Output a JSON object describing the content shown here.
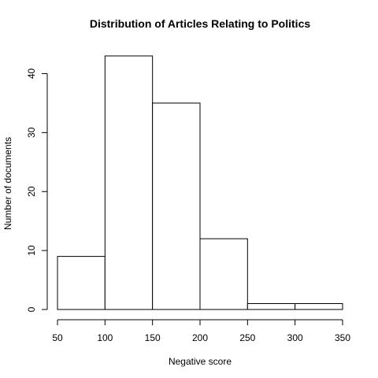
{
  "chart_data": {
    "type": "bar",
    "title": "Distribution of Articles Relating to Politics",
    "xlabel": "Negative score",
    "ylabel": "Number of documents",
    "bins": [
      {
        "start": 50,
        "end": 100,
        "count": 9
      },
      {
        "start": 100,
        "end": 150,
        "count": 43
      },
      {
        "start": 150,
        "end": 200,
        "count": 35
      },
      {
        "start": 200,
        "end": 250,
        "count": 12
      },
      {
        "start": 250,
        "end": 300,
        "count": 1
      },
      {
        "start": 300,
        "end": 350,
        "count": 1
      }
    ],
    "xticks": [
      50,
      100,
      150,
      200,
      250,
      300,
      350
    ],
    "yticks": [
      0,
      10,
      20,
      30,
      40
    ],
    "xlim": [
      50,
      350
    ],
    "ylim": [
      0,
      43
    ],
    "grid": false,
    "bar_fill": "#ffffff",
    "bar_stroke": "#000000"
  }
}
